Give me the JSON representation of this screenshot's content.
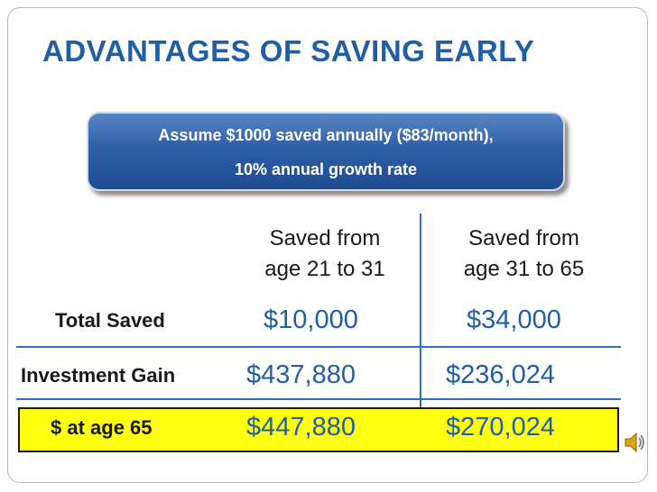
{
  "slide": {
    "title": "ADVANTAGES OF SAVING EARLY",
    "assumption": {
      "line1": "Assume $1000 saved annually ($83/month),",
      "line2": "10% annual growth rate"
    },
    "columns": [
      {
        "line1": "Saved from",
        "line2": "age 21 to 31"
      },
      {
        "line1": "Saved from",
        "line2": "age 31 to 65"
      }
    ],
    "rows": [
      {
        "label": "Total Saved",
        "values": [
          "$10,000",
          "$34,000"
        ]
      },
      {
        "label": "Investment Gain",
        "values": [
          "$437,880",
          "$236,024"
        ]
      },
      {
        "label": "$ at age 65",
        "values": [
          "$447,880",
          "$270,024"
        ]
      }
    ],
    "colors": {
      "accent": "#1f5fa8",
      "highlight": "#ffff10",
      "box": "#2f5fa6"
    },
    "audio_icon": "speaker-icon"
  }
}
